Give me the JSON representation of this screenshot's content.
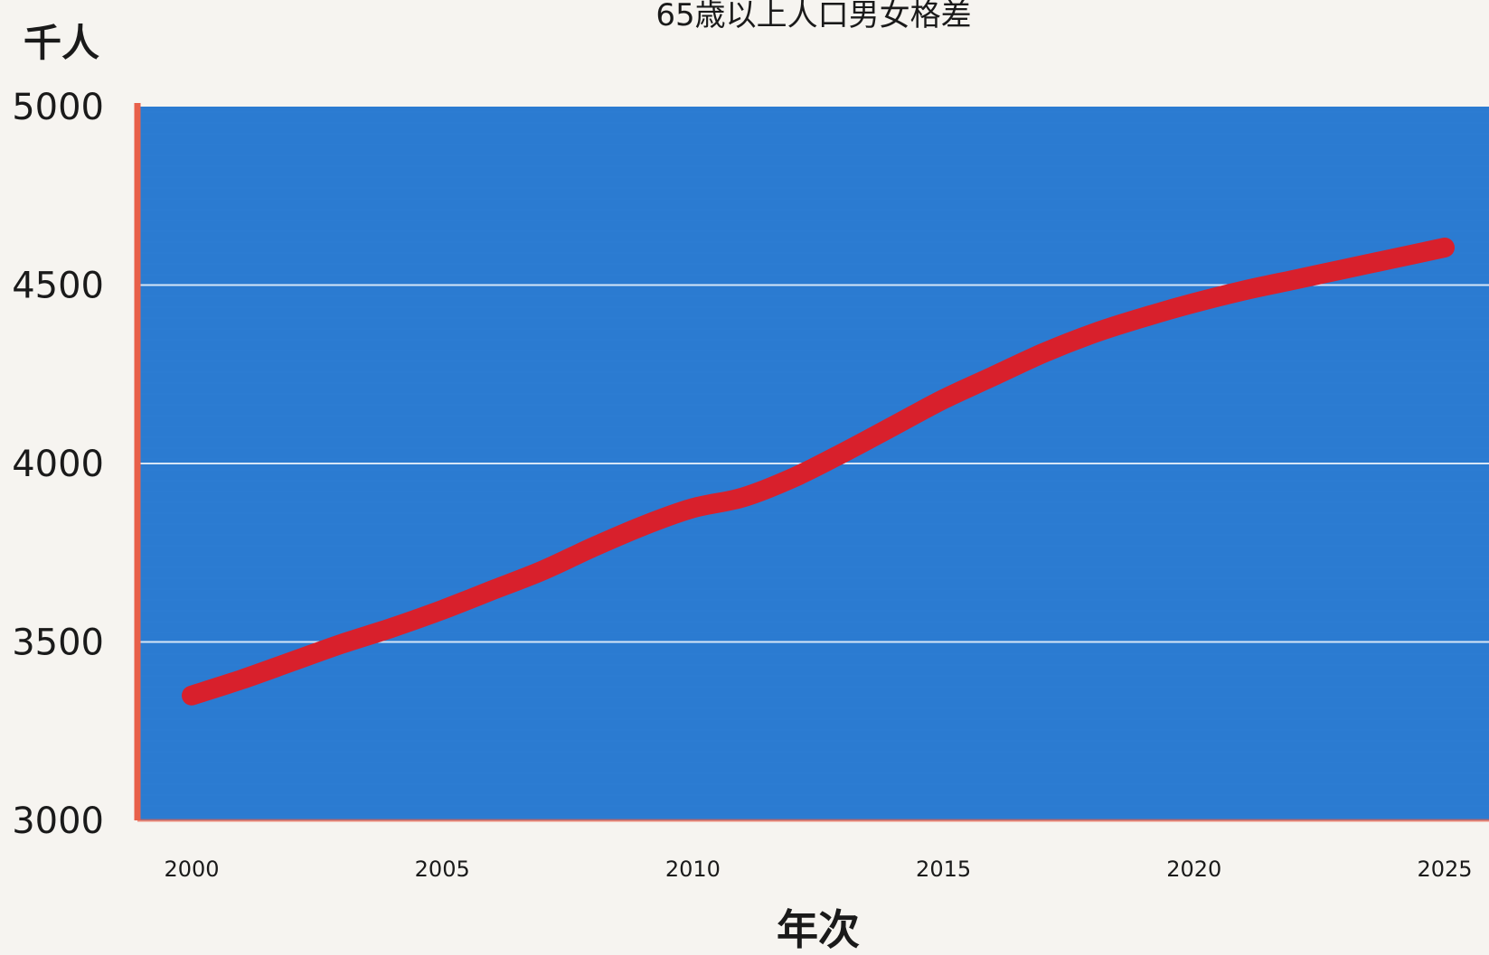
{
  "chart_data": {
    "type": "line",
    "title": "65歳以上人口男女格差",
    "ylabel": "千人",
    "xlabel": "年次",
    "x": [
      2000,
      2001,
      2002,
      2003,
      2004,
      2005,
      2006,
      2007,
      2008,
      2009,
      2010,
      2011,
      2012,
      2013,
      2014,
      2015,
      2016,
      2017,
      2018,
      2019,
      2020,
      2021,
      2022,
      2023,
      2024,
      2025
    ],
    "series": [
      {
        "values": [
          3350,
          3395,
          3445,
          3495,
          3540,
          3590,
          3645,
          3700,
          3765,
          3825,
          3875,
          3905,
          3960,
          4030,
          4105,
          4180,
          4245,
          4310,
          4365,
          4410,
          4450,
          4485,
          4515,
          4545,
          4575,
          4605
        ]
      }
    ],
    "xticks": [
      "2000",
      "2005",
      "2010",
      "2015",
      "2020",
      "2025"
    ],
    "yticks": [
      "3000",
      "3500",
      "4000",
      "4500",
      "5000"
    ],
    "ylim": [
      3000,
      5000
    ],
    "xlim": [
      2000,
      2025
    ],
    "grid": true,
    "legend": "none",
    "colors": {
      "plot_background": "#2b7bd1",
      "line": "#d8202c",
      "y_axis": "#e8604a",
      "grid": "#d6e6f7"
    }
  }
}
